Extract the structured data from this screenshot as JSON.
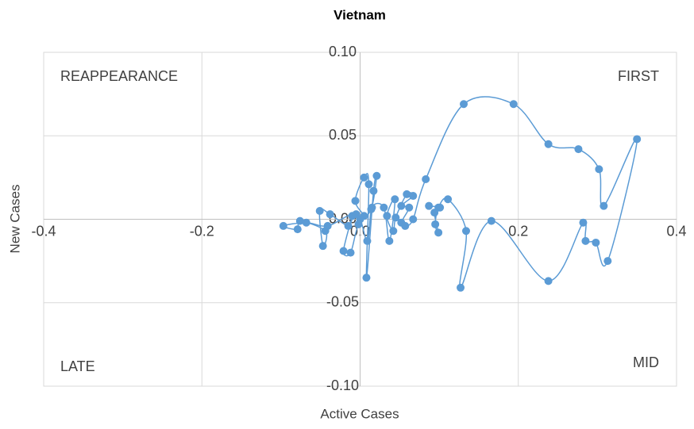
{
  "chart_data": {
    "type": "scatter",
    "title": "Vietnam",
    "x_label": "Active Cases",
    "y_label": "New Cases",
    "annotations": [
      "REAPPEARANCE",
      "FIRST",
      "LATE",
      "MID"
    ],
    "series": [
      {
        "color": "#5b9bd5",
        "x": [
          0.0,
          0.005,
          -0.006,
          0.005,
          0.011,
          0.008,
          0.017,
          0.021,
          0.014,
          -0.002,
          -0.012,
          -0.021,
          -0.01,
          -0.015,
          -0.038,
          -0.051,
          -0.047,
          -0.044,
          -0.076,
          -0.079,
          -0.097,
          -0.068,
          -0.041,
          -0.005,
          0.009,
          0.015,
          0.03,
          0.037,
          0.044,
          0.034,
          0.042,
          0.045,
          0.059,
          0.067,
          0.052,
          0.062,
          0.052,
          0.057,
          0.067,
          0.083,
          0.131,
          0.194,
          0.238,
          0.276,
          0.302,
          0.308,
          0.35,
          0.313,
          0.298,
          0.285,
          0.282,
          0.238,
          0.166,
          0.127,
          0.134,
          0.111,
          0.099,
          0.095,
          0.099,
          0.094,
          0.101,
          0.087
        ],
        "values": [
          0.0,
          0.002,
          0.011,
          0.025,
          0.021,
          -0.035,
          0.017,
          0.026,
          0.006,
          -0.003,
          -0.02,
          -0.019,
          0.002,
          -0.004,
          0.003,
          0.005,
          -0.016,
          -0.007,
          -0.001,
          -0.006,
          -0.004,
          -0.002,
          -0.004,
          0.003,
          -0.013,
          0.007,
          0.007,
          -0.013,
          0.012,
          0.002,
          -0.007,
          0.001,
          0.015,
          0.014,
          0.008,
          0.007,
          -0.002,
          -0.004,
          0.0,
          0.024,
          0.069,
          0.069,
          0.045,
          0.042,
          0.03,
          0.008,
          0.048,
          -0.025,
          -0.014,
          -0.013,
          -0.002,
          -0.037,
          -0.001,
          -0.041,
          -0.007,
          0.012,
          0.007,
          -0.003,
          -0.008,
          0.004,
          0.007,
          0.008
        ]
      }
    ],
    "xlim": [
      -0.4,
      0.4
    ],
    "xticks": [
      -0.4,
      -0.2,
      {
        "value": 0,
        "label": "0.0"
      },
      0.2,
      0.4
    ],
    "ylim": [
      -0.1,
      0.1
    ],
    "yticks": [
      {
        "value": -0.1,
        "label": "-0.10"
      },
      {
        "value": -0.05,
        "label": "-0.05"
      },
      {
        "value": 0,
        "label": "0.00"
      },
      {
        "value": 0.05,
        "label": "0.05"
      },
      {
        "value": 0.1,
        "label": "0.10"
      }
    ],
    "grid": true
  }
}
